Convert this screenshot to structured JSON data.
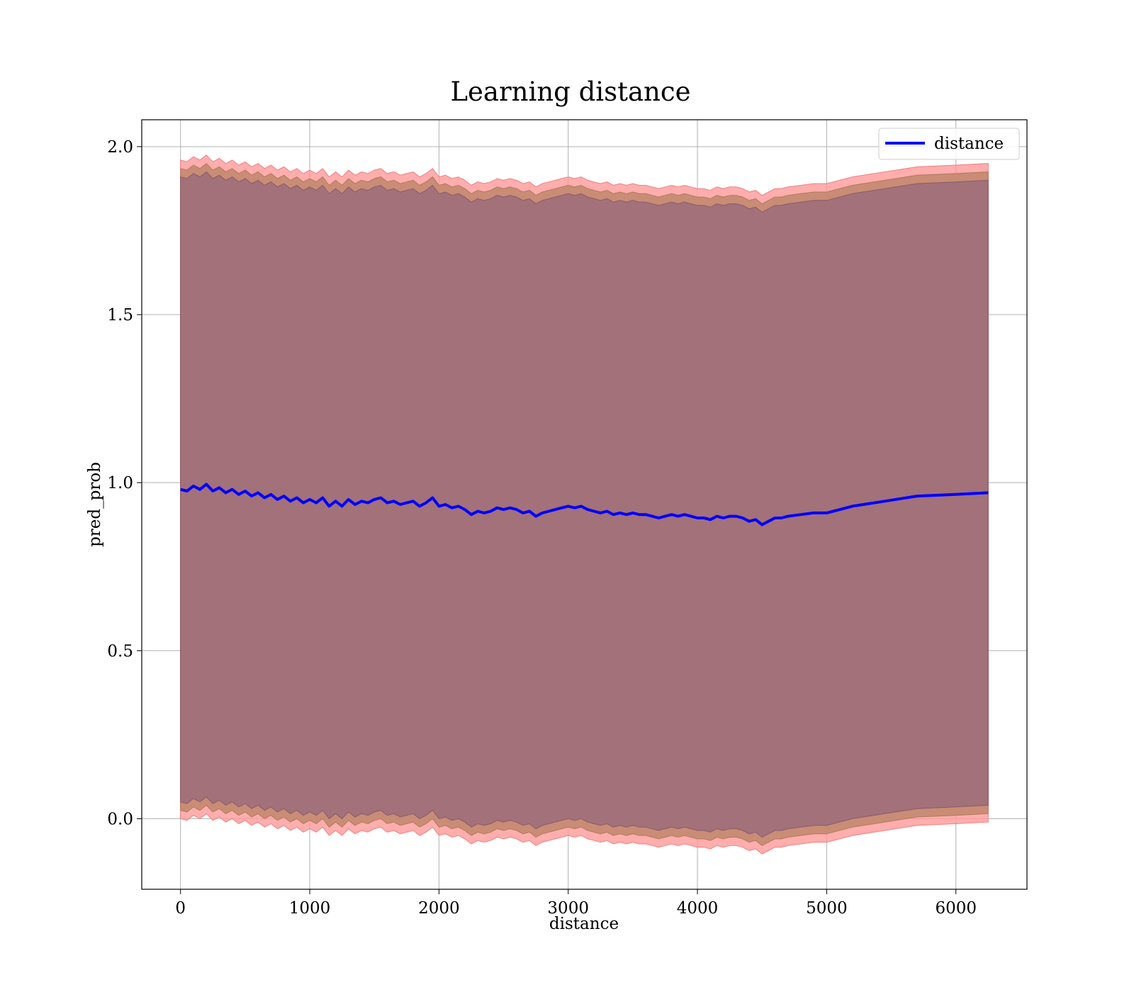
{
  "chart_data": {
    "type": "line",
    "title": "Learning distance",
    "xlabel": "distance",
    "ylabel": "pred_prob",
    "xlim": [
      -300,
      6550
    ],
    "ylim": [
      -0.21,
      2.08
    ],
    "xticks": [
      0,
      1000,
      2000,
      3000,
      4000,
      5000,
      6000
    ],
    "yticks": [
      0.0,
      0.5,
      1.0,
      1.5,
      2.0
    ],
    "xtick_labels": [
      "0",
      "1000",
      "2000",
      "3000",
      "4000",
      "5000",
      "6000"
    ],
    "ytick_labels": [
      "0.0",
      "0.5",
      "1.0",
      "1.5",
      "2.0"
    ],
    "grid": true,
    "legend": {
      "placement": "top-right",
      "entries": [
        "distance"
      ]
    },
    "colors": {
      "line": "#0000ff",
      "band_outer": "#ff9999",
      "band_mid": "#c98c75",
      "band_inner": "#a2717a"
    },
    "series": [
      {
        "name": "distance",
        "x": [
          0,
          50,
          100,
          150,
          200,
          250,
          300,
          350,
          400,
          450,
          500,
          550,
          600,
          650,
          700,
          750,
          800,
          850,
          900,
          950,
          1000,
          1050,
          1100,
          1150,
          1200,
          1250,
          1300,
          1350,
          1400,
          1450,
          1500,
          1550,
          1600,
          1650,
          1700,
          1750,
          1800,
          1850,
          1900,
          1950,
          2000,
          2050,
          2100,
          2150,
          2200,
          2250,
          2300,
          2350,
          2400,
          2450,
          2500,
          2550,
          2600,
          2650,
          2700,
          2750,
          2800,
          2850,
          2900,
          2950,
          3000,
          3050,
          3100,
          3150,
          3200,
          3250,
          3300,
          3350,
          3400,
          3450,
          3500,
          3550,
          3600,
          3650,
          3700,
          3750,
          3800,
          3850,
          3900,
          3950,
          4000,
          4050,
          4100,
          4150,
          4200,
          4250,
          4300,
          4350,
          4400,
          4450,
          4500,
          4550,
          4600,
          4650,
          4700,
          4800,
          4900,
          5000,
          5200,
          5450,
          5700,
          6000,
          6250
        ],
        "y": [
          0.98,
          0.975,
          0.99,
          0.98,
          0.995,
          0.975,
          0.985,
          0.97,
          0.98,
          0.965,
          0.975,
          0.96,
          0.97,
          0.955,
          0.965,
          0.95,
          0.96,
          0.945,
          0.955,
          0.94,
          0.95,
          0.94,
          0.955,
          0.93,
          0.945,
          0.93,
          0.95,
          0.935,
          0.945,
          0.94,
          0.95,
          0.955,
          0.94,
          0.945,
          0.935,
          0.94,
          0.945,
          0.93,
          0.94,
          0.955,
          0.93,
          0.935,
          0.925,
          0.93,
          0.92,
          0.905,
          0.915,
          0.91,
          0.915,
          0.925,
          0.92,
          0.925,
          0.92,
          0.91,
          0.915,
          0.9,
          0.91,
          0.915,
          0.92,
          0.925,
          0.93,
          0.925,
          0.93,
          0.92,
          0.915,
          0.91,
          0.915,
          0.905,
          0.91,
          0.905,
          0.91,
          0.905,
          0.905,
          0.9,
          0.895,
          0.9,
          0.905,
          0.9,
          0.905,
          0.9,
          0.895,
          0.895,
          0.89,
          0.9,
          0.895,
          0.9,
          0.9,
          0.895,
          0.885,
          0.89,
          0.875,
          0.885,
          0.895,
          0.895,
          0.9,
          0.905,
          0.91,
          0.91,
          0.93,
          0.945,
          0.96,
          0.965,
          0.97
        ],
        "band_inner_half": 0.93,
        "band_mid_half": 0.955,
        "band_outer_half": 0.98
      }
    ]
  }
}
